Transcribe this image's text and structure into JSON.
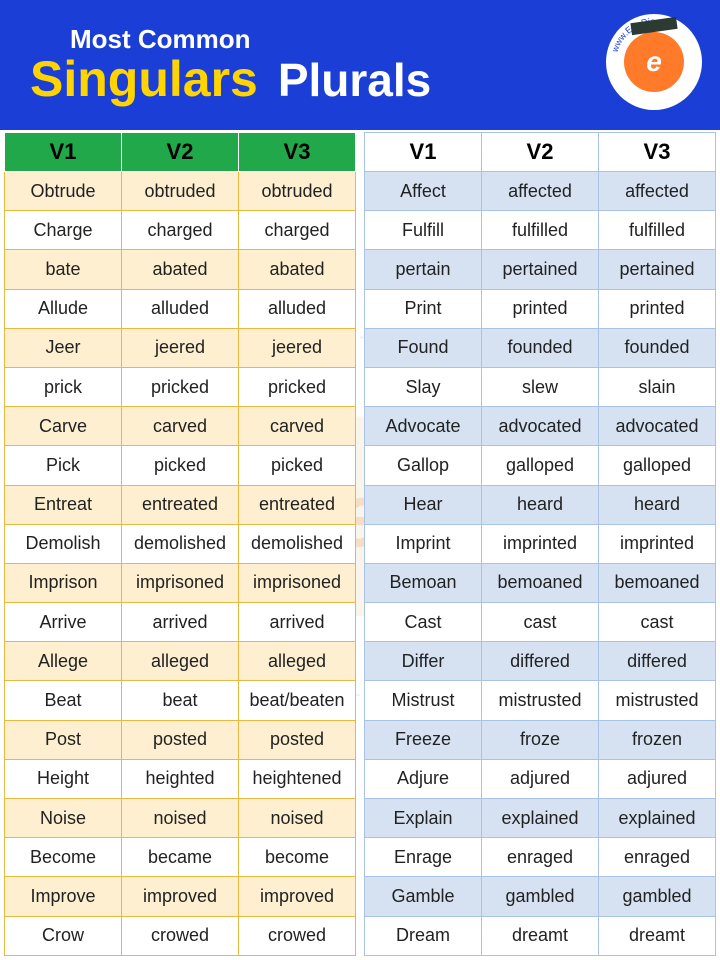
{
  "header": {
    "pretitle": "Most Common",
    "title_left": "Singulars",
    "title_right": "Plurals",
    "logo_letter": "e",
    "logo_url": "www.EngDic.org"
  },
  "styling": {
    "header_bg": "#1b3fd6",
    "singulars_color": "#ffd400",
    "plurals_color": "#ffffff",
    "pretitle_color": "#ffffff",
    "left_header_bg": "#21a84a",
    "left_border": "#e8b93f",
    "left_stripe_odd": "#fdefcf",
    "left_stripe_even": "#ffffff",
    "right_header_bg": "#ffffff",
    "right_border": "#a9c3e6",
    "right_stripe_odd": "#d6e2f2",
    "right_stripe_even": "#ffffff",
    "font_family": "Arial",
    "header_font_size_pt": 36,
    "cell_font_size_pt": 14
  },
  "left_table": {
    "headers": [
      "V1",
      "V2",
      "V3"
    ],
    "rows": [
      [
        "Obtrude",
        "obtruded",
        "obtruded"
      ],
      [
        "Charge",
        "charged",
        "charged"
      ],
      [
        "bate",
        "abated",
        "abated"
      ],
      [
        "Allude",
        "alluded",
        "alluded"
      ],
      [
        "Jeer",
        "jeered",
        "jeered"
      ],
      [
        "prick",
        "pricked",
        "pricked"
      ],
      [
        "Carve",
        "carved",
        "carved"
      ],
      [
        "Pick",
        "picked",
        "picked"
      ],
      [
        "Entreat",
        "entreated",
        "entreated"
      ],
      [
        "Demolish",
        "demolished",
        "demolished"
      ],
      [
        "Imprison",
        "imprisoned",
        "imprisoned"
      ],
      [
        "Arrive",
        "arrived",
        "arrived"
      ],
      [
        "Allege",
        "alleged",
        "alleged"
      ],
      [
        "Beat",
        "beat",
        "beat/beaten"
      ],
      [
        "Post",
        "posted",
        "posted"
      ],
      [
        "Height",
        "heighted",
        "heightened"
      ],
      [
        "Noise",
        "noised",
        "noised"
      ],
      [
        "Become",
        "became",
        "become"
      ],
      [
        "Improve",
        "improved",
        "improved"
      ],
      [
        "Crow",
        "crowed",
        "crowed"
      ]
    ]
  },
  "right_table": {
    "headers": [
      "V1",
      "V2",
      "V3"
    ],
    "rows": [
      [
        "Affect",
        "affected",
        "affected"
      ],
      [
        "Fulfill",
        "fulfilled",
        "fulfilled"
      ],
      [
        "pertain",
        "pertained",
        "pertained"
      ],
      [
        "Print",
        "printed",
        "printed"
      ],
      [
        "Found",
        "founded",
        "founded"
      ],
      [
        "Slay",
        "slew",
        "slain"
      ],
      [
        "Advocate",
        "advocated",
        "advocated"
      ],
      [
        "Gallop",
        "galloped",
        "galloped"
      ],
      [
        "Hear",
        "heard",
        "heard"
      ],
      [
        "Imprint",
        "imprinted",
        "imprinted"
      ],
      [
        "Bemoan",
        "bemoaned",
        "bemoaned"
      ],
      [
        "Cast",
        "cast",
        "cast"
      ],
      [
        "Differ",
        "differed",
        "differed"
      ],
      [
        "Mistrust",
        "mistrusted",
        "mistrusted"
      ],
      [
        "Freeze",
        "froze",
        "frozen"
      ],
      [
        "Adjure",
        "adjured",
        "adjured"
      ],
      [
        "Explain",
        "explained",
        "explained"
      ],
      [
        "Enrage",
        "enraged",
        "enraged"
      ],
      [
        "Gamble",
        "gambled",
        "gambled"
      ],
      [
        "Dream",
        "dreamt",
        "dreamt"
      ]
    ]
  }
}
